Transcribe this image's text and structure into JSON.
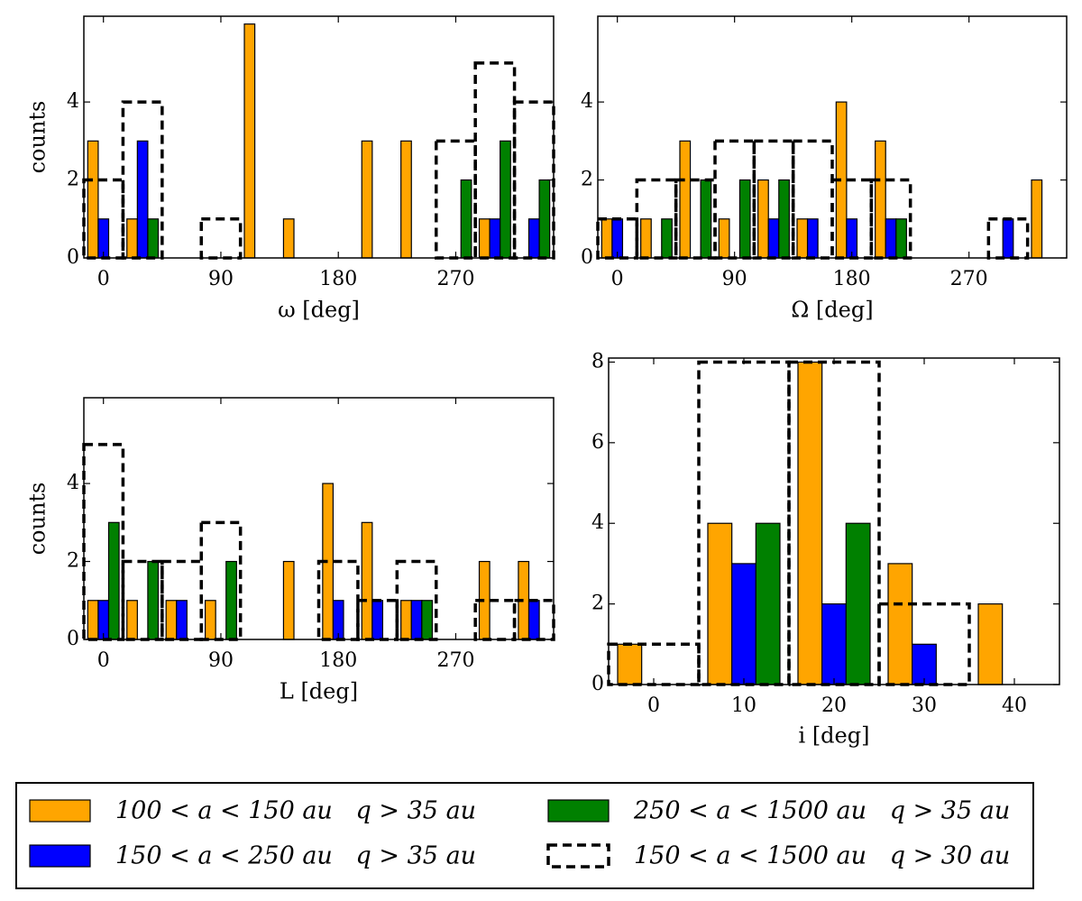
{
  "legend": [
    {
      "name": "100 < a < 150 au   q > 35 au",
      "color": "#ffa500"
    },
    {
      "name": "150 < a < 250 au   q > 35 au",
      "color": "#0000ff"
    },
    {
      "name": "250 < a < 1500 au   q > 35 au",
      "color": "#008000"
    },
    {
      "name": "150 < a < 1500 au   q > 30 au",
      "color": "#000000",
      "style": "dashed"
    }
  ],
  "chart_data": [
    {
      "type": "histogram",
      "xlabel": "ω [deg]",
      "ylabel": "counts",
      "bins": [
        -15,
        15,
        45,
        75,
        105,
        135,
        165,
        195,
        225,
        255,
        285,
        315,
        345
      ],
      "xlim": [
        -15,
        345
      ],
      "xticks": [
        0,
        90,
        180,
        270
      ],
      "ylim": [
        0,
        6.2
      ],
      "yticks": [
        0,
        2,
        4
      ],
      "series": [
        {
          "color": "#ffa500",
          "values": [
            3,
            1,
            0,
            0,
            6,
            1,
            0,
            3,
            3,
            0,
            1,
            0
          ]
        },
        {
          "color": "#0000ff",
          "values": [
            1,
            3,
            0,
            0,
            0,
            0,
            0,
            0,
            0,
            0,
            1,
            1
          ]
        },
        {
          "color": "#008000",
          "values": [
            0,
            1,
            0,
            0,
            0,
            0,
            0,
            0,
            0,
            2,
            3,
            2
          ]
        },
        {
          "color": "#000000",
          "style": "dashed",
          "values": [
            2,
            4,
            0,
            1,
            0,
            0,
            0,
            0,
            0,
            3,
            5,
            4
          ]
        }
      ]
    },
    {
      "type": "histogram",
      "xlabel": "Ω [deg]",
      "bins": [
        -15,
        15,
        45,
        75,
        105,
        135,
        165,
        195,
        225,
        255,
        285,
        315,
        345
      ],
      "xlim": [
        -15,
        345
      ],
      "xticks": [
        0,
        90,
        180,
        270
      ],
      "ylim": [
        0,
        6.2
      ],
      "yticks": [
        0,
        2,
        4
      ],
      "series": [
        {
          "color": "#ffa500",
          "values": [
            1,
            1,
            3,
            1,
            2,
            1,
            4,
            3,
            0,
            0,
            0,
            2
          ]
        },
        {
          "color": "#0000ff",
          "values": [
            1,
            0,
            0,
            0,
            1,
            1,
            1,
            1,
            0,
            0,
            1,
            0
          ]
        },
        {
          "color": "#008000",
          "values": [
            0,
            1,
            2,
            2,
            2,
            0,
            0,
            1,
            0,
            0,
            0,
            0
          ]
        },
        {
          "color": "#000000",
          "style": "dashed",
          "values": [
            1,
            2,
            2,
            3,
            3,
            3,
            2,
            2,
            0,
            0,
            1,
            0
          ]
        }
      ]
    },
    {
      "type": "histogram",
      "xlabel": "L [deg]",
      "ylabel": "counts",
      "bins": [
        -15,
        15,
        45,
        75,
        105,
        135,
        165,
        195,
        225,
        255,
        285,
        315,
        345
      ],
      "xlim": [
        -15,
        345
      ],
      "xticks": [
        0,
        90,
        180,
        270
      ],
      "ylim": [
        0,
        6.2
      ],
      "yticks": [
        0,
        2,
        4
      ],
      "series": [
        {
          "color": "#ffa500",
          "values": [
            1,
            1,
            1,
            1,
            0,
            2,
            4,
            3,
            1,
            0,
            2,
            2
          ]
        },
        {
          "color": "#0000ff",
          "values": [
            1,
            0,
            1,
            0,
            0,
            0,
            1,
            1,
            1,
            0,
            0,
            1
          ]
        },
        {
          "color": "#008000",
          "values": [
            3,
            2,
            0,
            2,
            0,
            0,
            0,
            0,
            1,
            0,
            0,
            0
          ]
        },
        {
          "color": "#000000",
          "style": "dashed",
          "values": [
            5,
            2,
            2,
            3,
            0,
            0,
            2,
            1,
            2,
            0,
            1,
            1
          ]
        }
      ]
    },
    {
      "type": "histogram",
      "xlabel": "i [deg]",
      "bins": [
        -5,
        5,
        15,
        25,
        35,
        45
      ],
      "xlim": [
        -5,
        45
      ],
      "xticks": [
        0,
        10,
        20,
        30,
        40
      ],
      "ylim": [
        0,
        8.1
      ],
      "yticks": [
        0,
        2,
        4,
        6,
        8
      ],
      "series": [
        {
          "color": "#ffa500",
          "values": [
            1,
            4,
            8,
            3,
            2
          ]
        },
        {
          "color": "#0000ff",
          "values": [
            0,
            3,
            2,
            1,
            0
          ]
        },
        {
          "color": "#008000",
          "values": [
            0,
            4,
            4,
            0,
            0
          ]
        },
        {
          "color": "#000000",
          "style": "dashed",
          "values": [
            1,
            8,
            8,
            2,
            0
          ]
        }
      ]
    }
  ]
}
